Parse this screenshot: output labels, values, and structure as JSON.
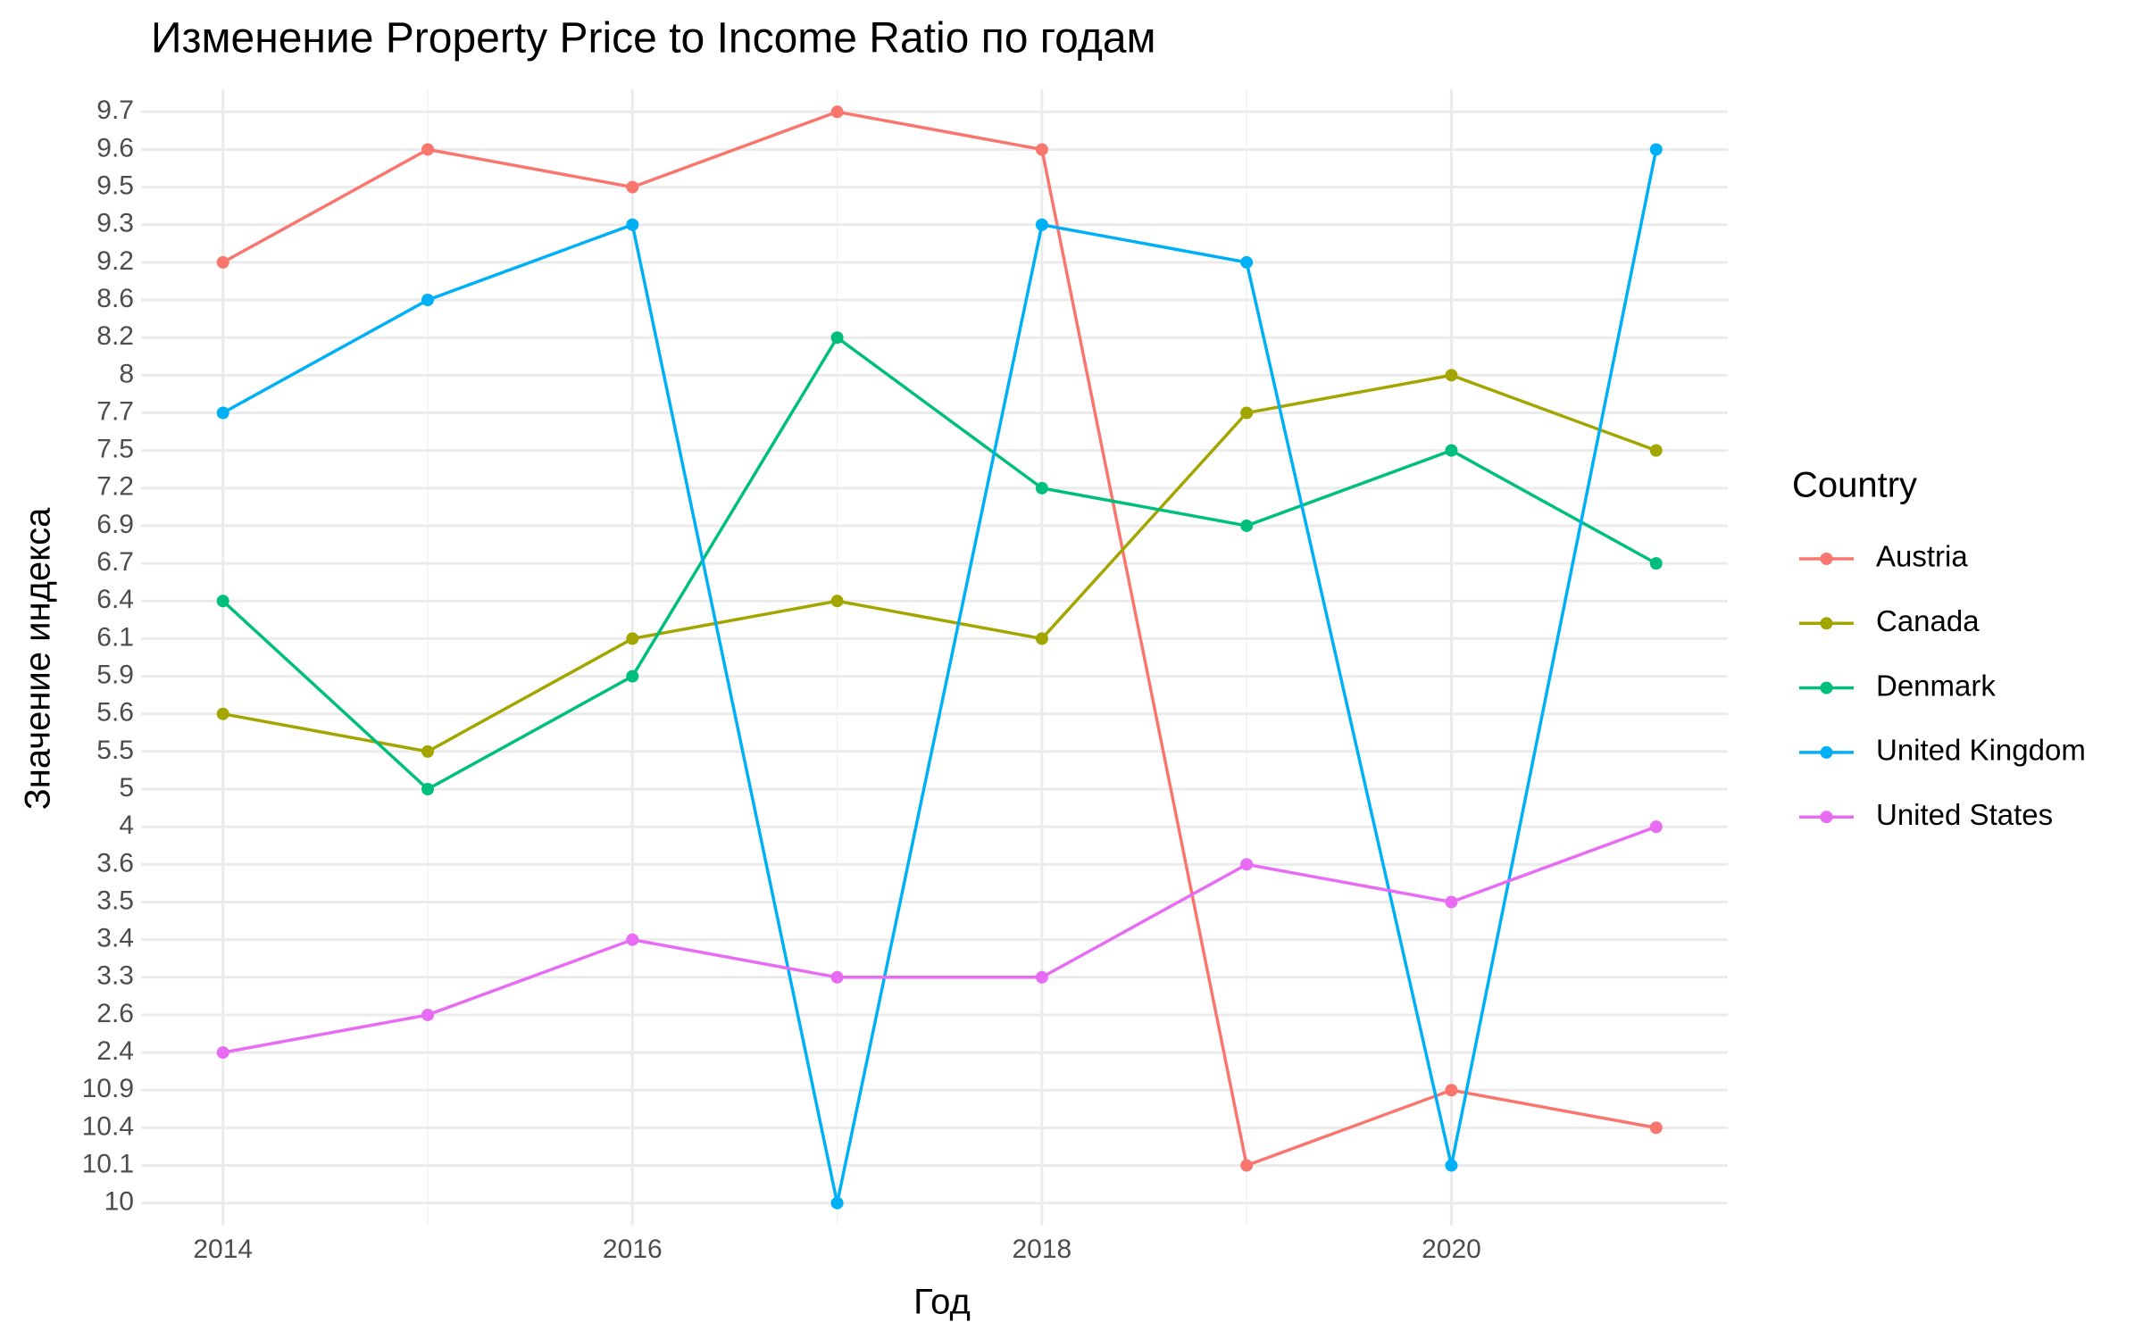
{
  "chart_data": {
    "type": "line",
    "title": "Изменение Property Price to Income Ratio по годам",
    "x_label": "Год",
    "y_label": "Значение индекса",
    "x": [
      2014,
      2015,
      2016,
      2017,
      2018,
      2019,
      2020,
      2021
    ],
    "xlim": [
      2013.6,
      2021.35
    ],
    "xticks": [
      2014,
      2016,
      2018,
      2020
    ],
    "ycategories": [
      10,
      10.1,
      10.4,
      10.9,
      2.4,
      2.6,
      3.3,
      3.4,
      3.5,
      3.6,
      4,
      5,
      5.5,
      5.6,
      5.9,
      6.1,
      6.4,
      6.7,
      6.9,
      7.2,
      7.5,
      7.7,
      8,
      8.2,
      8.6,
      9.2,
      9.3,
      9.5,
      9.6,
      9.7
    ],
    "grid": true,
    "legend_title": "Country",
    "legend_position": "right",
    "series": [
      {
        "name": "Austria",
        "color": "#F8766D",
        "values": [
          9.2,
          9.6,
          9.5,
          9.7,
          9.6,
          10.1,
          10.9,
          10.4
        ]
      },
      {
        "name": "Canada",
        "color": "#A3A500",
        "values": [
          5.6,
          5.5,
          6.1,
          6.4,
          6.1,
          7.7,
          8,
          7.5
        ]
      },
      {
        "name": "Denmark",
        "color": "#00BF7D",
        "values": [
          6.4,
          5,
          5.9,
          8.2,
          7.2,
          6.9,
          7.5,
          6.7
        ]
      },
      {
        "name": "United Kingdom",
        "color": "#00B0F6",
        "values": [
          7.7,
          8.6,
          9.3,
          10,
          9.3,
          9.2,
          10.1,
          9.6
        ]
      },
      {
        "name": "United States",
        "color": "#E76BF3",
        "values": [
          2.4,
          2.6,
          3.4,
          3.3,
          3.3,
          3.6,
          3.5,
          4
        ]
      }
    ]
  }
}
